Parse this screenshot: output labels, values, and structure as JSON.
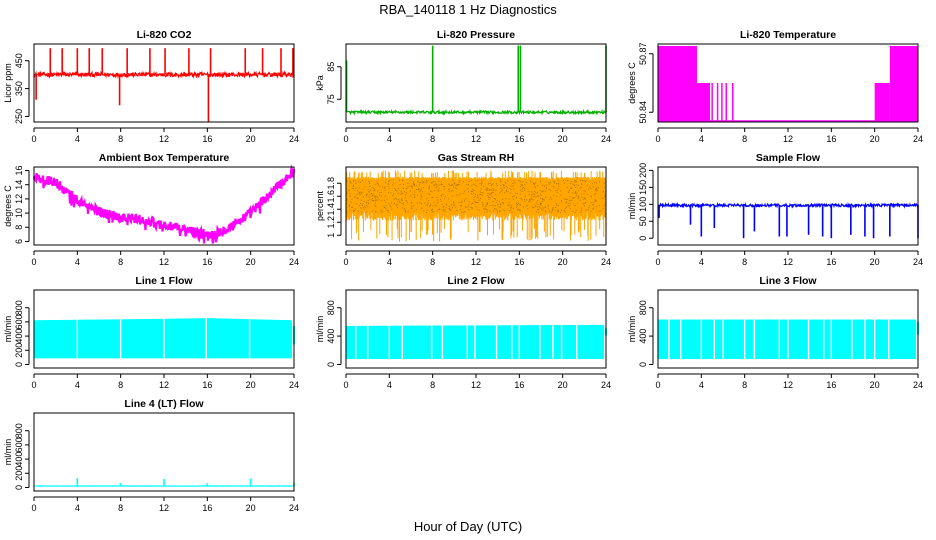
{
  "figure": {
    "title": "RBA_140118  1 Hz Diagnostics",
    "xlabel": "Hour of Day (UTC)"
  },
  "chart_data": [
    {
      "type": "line",
      "title": "Li-820 CO2",
      "ylabel": "Licor ppm",
      "color": "#ff0000",
      "xlim": [
        0,
        24
      ],
      "ylim": [
        230,
        510
      ],
      "xticks": [
        0,
        4,
        8,
        12,
        16,
        20,
        24
      ],
      "yticks": [
        250,
        350,
        450
      ],
      "series": [
        {
          "style": "noisy-baseline",
          "baseline": 400,
          "noise": 8,
          "spikes": [
            [
              0.2,
              310
            ],
            [
              1.5,
              495
            ],
            [
              2.6,
              495
            ],
            [
              4.0,
              495
            ],
            [
              5.1,
              495
            ],
            [
              6.3,
              495
            ],
            [
              7.9,
              290
            ],
            [
              8.6,
              495
            ],
            [
              10.7,
              495
            ],
            [
              12.1,
              495
            ],
            [
              14.3,
              495
            ],
            [
              16.1,
              230
            ],
            [
              16.3,
              495
            ],
            [
              19.5,
              495
            ],
            [
              21.1,
              495
            ],
            [
              22.8,
              495
            ],
            [
              23.9,
              495
            ]
          ]
        }
      ]
    },
    {
      "type": "line",
      "title": "Li-820 Pressure",
      "ylabel": "kPa",
      "color": "#00b000",
      "xlim": [
        0,
        24
      ],
      "ylim": [
        68,
        92
      ],
      "xticks": [
        0,
        4,
        8,
        12,
        16,
        20,
        24
      ],
      "yticks": [
        75,
        85
      ],
      "series": [
        {
          "style": "noisy-baseline",
          "baseline": 71,
          "noise": 0.4,
          "spikes": [
            [
              0.05,
              87
            ],
            [
              8.0,
              91.5
            ],
            [
              15.9,
              91.5
            ],
            [
              16.1,
              91.5
            ],
            [
              24.0,
              91.5
            ]
          ]
        }
      ]
    },
    {
      "type": "area",
      "title": "Li-820 Temperature",
      "ylabel": "degrees C",
      "color": "#ff00ff",
      "xlim": [
        0,
        24
      ],
      "ylim": [
        50.835,
        50.875
      ],
      "xticks": [
        0,
        4,
        8,
        12,
        16,
        20,
        24
      ],
      "yticks": [
        50.84,
        50.87
      ],
      "series": [
        {
          "style": "steps",
          "low": 50.835,
          "segments": [
            [
              0,
              3.6,
              50.874
            ],
            [
              3.6,
              4.8,
              50.855
            ],
            [
              20.0,
              21.4,
              50.855
            ],
            [
              21.4,
              24.0,
              50.874
            ]
          ],
          "vlines": [
            3.9,
            5.0,
            5.5,
            5.9,
            6.3,
            6.9
          ]
        }
      ]
    },
    {
      "type": "line",
      "title": "Ambient Box Temperature",
      "ylabel": "degrees C",
      "color": "#ff00ff",
      "xlim": [
        0,
        24
      ],
      "ylim": [
        5.5,
        16.5
      ],
      "xticks": [
        0,
        4,
        8,
        12,
        16,
        20,
        24
      ],
      "yticks": [
        6,
        8,
        10,
        12,
        14,
        16
      ],
      "series": [
        {
          "style": "noisy-curve",
          "noise": 0.7,
          "points": [
            [
              0,
              15.1
            ],
            [
              2,
              14.3
            ],
            [
              4,
              11.8
            ],
            [
              6,
              10.2
            ],
            [
              8,
              9.5
            ],
            [
              10,
              9.0
            ],
            [
              12,
              8.3
            ],
            [
              14,
              7.6
            ],
            [
              16,
              7.0
            ],
            [
              17,
              7.3
            ],
            [
              18,
              8.0
            ],
            [
              20,
              10.0
            ],
            [
              22,
              13.0
            ],
            [
              24,
              16.0
            ]
          ]
        }
      ]
    },
    {
      "type": "line",
      "title": "Gas Stream RH",
      "ylabel": "percent",
      "color": "#ffa500",
      "xlim": [
        0,
        24
      ],
      "ylim": [
        0.85,
        2.05
      ],
      "xticks": [
        0,
        4,
        8,
        12,
        16,
        20,
        24
      ],
      "yticks": [
        1.0,
        1.2,
        1.4,
        1.6,
        1.8
      ],
      "series": [
        {
          "style": "dense-band",
          "low": 1.3,
          "high": 1.9,
          "minlow": 0.9,
          "maxhigh": 2.0
        }
      ]
    },
    {
      "type": "line",
      "title": "Sample Flow",
      "ylabel": "ml/min",
      "color": "#0000ff",
      "xlim": [
        0,
        24
      ],
      "ylim": [
        -20,
        210
      ],
      "xticks": [
        0,
        4,
        8,
        12,
        16,
        20,
        24
      ],
      "yticks": [
        0,
        50,
        100,
        150,
        200
      ],
      "series": [
        {
          "style": "noisy-baseline",
          "baseline": 97,
          "noise": 4,
          "spikes": [
            [
              0.1,
              60
            ],
            [
              3.0,
              40
            ],
            [
              4.0,
              5
            ],
            [
              5.2,
              30
            ],
            [
              7.9,
              0
            ],
            [
              8.9,
              20
            ],
            [
              11.2,
              5
            ],
            [
              11.9,
              5
            ],
            [
              13.9,
              10
            ],
            [
              15.2,
              5
            ],
            [
              16.0,
              0
            ],
            [
              17.8,
              10
            ],
            [
              19.1,
              5
            ],
            [
              19.9,
              0
            ],
            [
              21.4,
              5
            ],
            [
              24.0,
              0
            ]
          ]
        }
      ]
    },
    {
      "type": "area",
      "title": "Line 1 Flow",
      "ylabel": "ml/min",
      "color": "#00ffff",
      "xlim": [
        0,
        24
      ],
      "ylim": [
        -50,
        1050
      ],
      "xticks": [
        0,
        4,
        8,
        12,
        16,
        20,
        24
      ],
      "yticks": [
        0,
        200,
        400,
        600,
        800
      ],
      "series": [
        {
          "style": "band",
          "low": 90,
          "high": [
            [
              0,
              620
            ],
            [
              12,
              640
            ],
            [
              16,
              650
            ],
            [
              23.8,
              620
            ]
          ],
          "end": 23.8,
          "tail": [
            23.9,
            24.0,
            280,
            540
          ],
          "gaps": [
            4.0,
            8.0,
            12.0,
            15.9,
            19.9
          ]
        }
      ]
    },
    {
      "type": "area",
      "title": "Line 2 Flow",
      "ylabel": "ml/min",
      "color": "#00ffff",
      "xlim": [
        0,
        24
      ],
      "ylim": [
        -50,
        1050
      ],
      "xticks": [
        0,
        4,
        8,
        12,
        16,
        20,
        24
      ],
      "yticks": [
        0,
        400,
        800
      ],
      "series": [
        {
          "style": "band",
          "low": 80,
          "high": [
            [
              0,
              540
            ],
            [
              24,
              555
            ]
          ],
          "end": 23.8,
          "tail": [
            23.9,
            24.0,
            410,
            510
          ],
          "gaps": [
            0.9,
            2.0,
            4.0,
            5.2,
            7.9,
            8.9,
            11.2,
            11.9,
            13.9,
            15.3,
            16.0,
            17.9,
            19.1,
            19.9,
            21.3
          ]
        }
      ]
    },
    {
      "type": "area",
      "title": "Line 3 Flow",
      "ylabel": "ml/min",
      "color": "#00ffff",
      "xlim": [
        0,
        24
      ],
      "ylim": [
        -50,
        1050
      ],
      "xticks": [
        0,
        4,
        8,
        12,
        16,
        20,
        24
      ],
      "yticks": [
        0,
        400,
        800
      ],
      "series": [
        {
          "style": "band",
          "low": 80,
          "high": [
            [
              0,
              630
            ],
            [
              24,
              630
            ]
          ],
          "end": 23.8,
          "tail": [
            23.9,
            24.0,
            420,
            600
          ],
          "gaps": [
            1.0,
            2.1,
            4.0,
            5.2,
            6.0,
            8.0,
            8.9,
            11.2,
            12.0,
            13.9,
            15.3,
            16.0,
            17.9,
            19.1,
            20.0,
            21.3
          ]
        }
      ]
    },
    {
      "type": "line",
      "title": "Line 4 (LT) Flow",
      "ylabel": "ml/min",
      "color": "#00ffff",
      "xlim": [
        0,
        24
      ],
      "ylim": [
        -50,
        1050
      ],
      "xticks": [
        0,
        4,
        8,
        12,
        16,
        20,
        24
      ],
      "yticks": [
        0,
        200,
        400,
        600,
        800
      ],
      "series": [
        {
          "style": "noisy-baseline",
          "baseline": 20,
          "noise": 3,
          "spikes": [
            [
              4.0,
              130
            ],
            [
              8.0,
              60
            ],
            [
              12.0,
              120
            ],
            [
              16.0,
              60
            ],
            [
              20.0,
              125
            ],
            [
              24.0,
              70
            ]
          ]
        }
      ]
    }
  ]
}
